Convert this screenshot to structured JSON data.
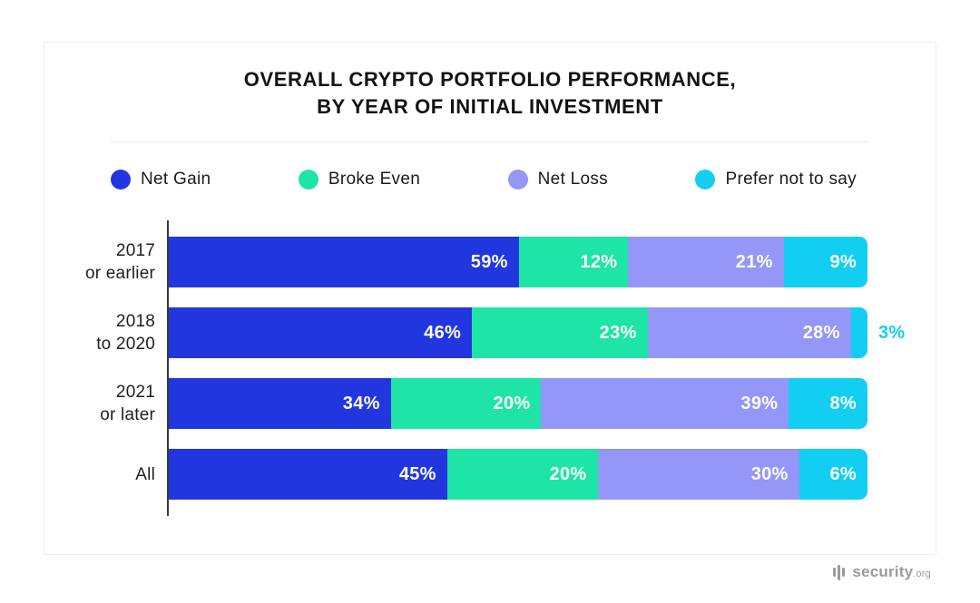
{
  "title": {
    "line1": "OVERALL CRYPTO PORTFOLIO PERFORMANCE,",
    "line2": "BY YEAR OF INITIAL INVESTMENT"
  },
  "chart_data": {
    "type": "bar",
    "orientation": "horizontal",
    "stacked": true,
    "title": "OVERALL CRYPTO PORTFOLIO PERFORMANCE, BY YEAR OF INITIAL INVESTMENT",
    "categories": [
      [
        "2017",
        "or earlier"
      ],
      [
        "2018",
        "to 2020"
      ],
      [
        "2021",
        "or later"
      ],
      [
        "All"
      ]
    ],
    "series": [
      {
        "name": "Net Gain",
        "color": "#2236e0",
        "values": [
          59,
          46,
          34,
          45
        ]
      },
      {
        "name": "Broke Even",
        "color": "#1ee5a5",
        "values": [
          12,
          23,
          20,
          20
        ]
      },
      {
        "name": "Net Loss",
        "color": "#9496f8",
        "values": [
          21,
          28,
          39,
          30
        ]
      },
      {
        "name": "Prefer not to say",
        "color": "#12cff2",
        "values": [
          9,
          3,
          8,
          6
        ]
      }
    ],
    "value_suffix": "%",
    "legend_position": "top",
    "grid": false,
    "axis_color": "#3a3a3a"
  },
  "footer": {
    "brand": "security",
    "brand_suffix": ".org"
  }
}
